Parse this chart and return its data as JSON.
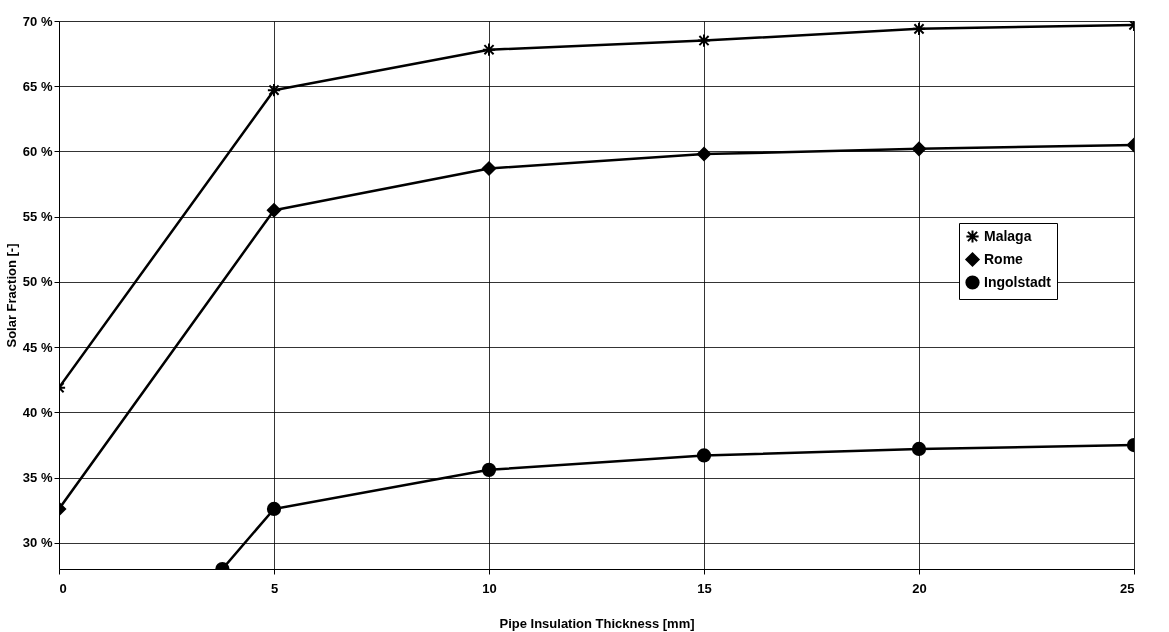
{
  "chart_data": {
    "type": "line",
    "xlabel": "Pipe Insulation Thickness [mm]",
    "ylabel": "Solar Fraction [-]",
    "x": [
      0,
      5,
      10,
      15,
      20,
      25
    ],
    "series": [
      {
        "name": "Malaga",
        "color": "#000000",
        "marker": "cross",
        "values": [
          41.9,
          64.7,
          67.8,
          68.5,
          69.4,
          69.7
        ]
      },
      {
        "name": "Rome",
        "color": "#000000",
        "marker": "diamond",
        "values": [
          32.6,
          55.5,
          58.7,
          59.8,
          60.2,
          60.5
        ]
      },
      {
        "name": "Ingolstadt",
        "color": "#000000",
        "marker": "circle",
        "x": [
          3.8,
          5,
          10,
          15,
          20,
          25
        ],
        "values": [
          28,
          32.6,
          35.6,
          36.7,
          37.2,
          37.5
        ]
      }
    ],
    "xlim": [
      0,
      25
    ],
    "xticks": [
      0,
      5,
      10,
      15,
      20,
      25
    ],
    "ylim": [
      28,
      70
    ],
    "yticks": [
      {
        "value": 30,
        "label": "30 %"
      },
      {
        "value": 35,
        "label": "35 %"
      },
      {
        "value": 40,
        "label": "40 %"
      },
      {
        "value": 45,
        "label": "45 %"
      },
      {
        "value": 50,
        "label": "50 %"
      },
      {
        "value": 55,
        "label": "55 %"
      },
      {
        "value": 60,
        "label": "60 %"
      },
      {
        "value": 65,
        "label": "65 %"
      },
      {
        "value": 70,
        "label": "70 %"
      }
    ],
    "grid": true,
    "legend": "right",
    "line_style": "solid"
  }
}
